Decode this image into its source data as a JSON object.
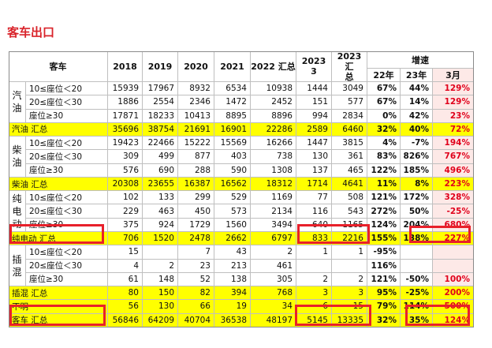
{
  "page": {
    "title": "客车出口"
  },
  "table": {
    "header": {
      "car": "客车",
      "y2018": "2018",
      "y2019": "2019",
      "y2020": "2020",
      "y2021": "2021",
      "y2022": "2022 汇总",
      "y2023_3_a": "2023",
      "y2023_3_b": "3",
      "y2023_sum_a": "2023 汇",
      "y2023_sum_b": "总",
      "growth": "增速",
      "g22": "22年",
      "g23": "23年",
      "gmar": "3月"
    },
    "groups": {
      "gas": [
        "汽",
        "油"
      ],
      "diesel": [
        "柴",
        "油"
      ],
      "ev": [
        "纯",
        "电",
        "动"
      ],
      "phev": [
        "插",
        "混"
      ]
    },
    "rows": [
      {
        "label": "10≤座位＜20",
        "v": [
          "15939",
          "17967",
          "8932",
          "6534",
          "10938",
          "1444",
          "3049"
        ],
        "g": [
          "67%",
          "44%",
          "129%"
        ]
      },
      {
        "label": "20≤座位＜30",
        "v": [
          "1886",
          "2554",
          "2346",
          "1472",
          "2452",
          "151",
          "577"
        ],
        "g": [
          "67%",
          "14%",
          "129%"
        ]
      },
      {
        "label": "座位≥30",
        "v": [
          "17871",
          "18233",
          "10413",
          "8895",
          "8896",
          "994",
          "2834"
        ],
        "g": [
          "0%",
          "42%",
          "23%"
        ]
      },
      {
        "label": "汽油 汇总",
        "v": [
          "35696",
          "38754",
          "21691",
          "16901",
          "22286",
          "2589",
          "6460"
        ],
        "g": [
          "32%",
          "40%",
          "72%"
        ]
      },
      {
        "label": "10≤座位＜20",
        "v": [
          "19423",
          "22466",
          "15222",
          "15569",
          "16266",
          "1447",
          "3815"
        ],
        "g": [
          "4%",
          "-7%",
          "194%"
        ]
      },
      {
        "label": "20≤座位＜30",
        "v": [
          "309",
          "499",
          "877",
          "403",
          "738",
          "130",
          "361"
        ],
        "g": [
          "83%",
          "826%",
          "767%"
        ]
      },
      {
        "label": "座位≥30",
        "v": [
          "576",
          "690",
          "288",
          "590",
          "1308",
          "137",
          "465"
        ],
        "g": [
          "122%",
          "185%",
          "496%"
        ]
      },
      {
        "label": "柴油 汇总",
        "v": [
          "20308",
          "23655",
          "16387",
          "16562",
          "18312",
          "1714",
          "4641"
        ],
        "g": [
          "11%",
          "8%",
          "223%"
        ]
      },
      {
        "label": "10≤座位＜20",
        "v": [
          "102",
          "133",
          "299",
          "529",
          "1169",
          "77",
          "508"
        ],
        "g": [
          "121%",
          "172%",
          "328%"
        ]
      },
      {
        "label": "20≤座位＜30",
        "v": [
          "229",
          "463",
          "450",
          "573",
          "2134",
          "116",
          "543"
        ],
        "g": [
          "272%",
          "50%",
          "-25%"
        ]
      },
      {
        "label": "座位≥30",
        "v": [
          "375",
          "924",
          "1729",
          "1560",
          "3494",
          "640",
          "1165"
        ],
        "g": [
          "124%",
          "204%",
          "680%"
        ]
      },
      {
        "label": "纯电动 汇总",
        "v": [
          "706",
          "1520",
          "2478",
          "2662",
          "6797",
          "833",
          "2216"
        ],
        "g": [
          "155%",
          "138%",
          "227%"
        ]
      },
      {
        "label": "10≤座位＜20",
        "v": [
          "15",
          "",
          "7",
          "43",
          "2",
          "1",
          "1"
        ],
        "g": [
          "-95%",
          "",
          ""
        ]
      },
      {
        "label": "20≤座位＜30",
        "v": [
          "4",
          "2",
          "23",
          "213",
          "461",
          "",
          ""
        ],
        "g": [
          "116%",
          "",
          ""
        ]
      },
      {
        "label": "座位≥30",
        "v": [
          "61",
          "148",
          "52",
          "138",
          "305",
          "2",
          "2"
        ],
        "g": [
          "121%",
          "-50%",
          "100%"
        ]
      },
      {
        "label": "插混 汇总",
        "v": [
          "80",
          "150",
          "82",
          "394",
          "768",
          "3",
          "3"
        ],
        "g": [
          "95%",
          "-25%",
          "200%"
        ]
      },
      {
        "label": "不明",
        "v": [
          "56",
          "130",
          "66",
          "19",
          "34",
          "6",
          "15"
        ],
        "g": [
          "79%",
          "114%",
          "500%"
        ]
      },
      {
        "label": "客车 汇总",
        "v": [
          "56846",
          "64209",
          "40704",
          "36538",
          "48197",
          "5145",
          "13335"
        ],
        "g": [
          "32%",
          "35%",
          "124%"
        ]
      }
    ]
  }
}
